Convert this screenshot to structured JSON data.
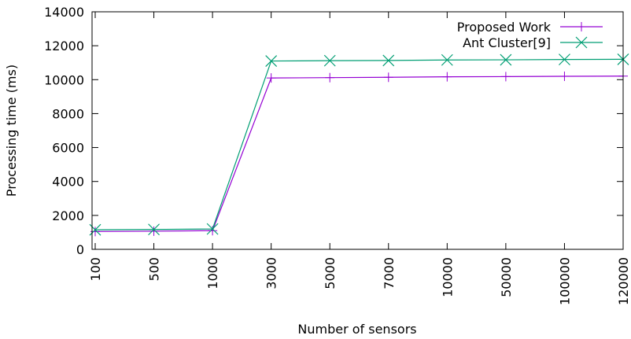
{
  "chart_data": {
    "type": "line",
    "title": "",
    "xlabel": "Number of sensors",
    "ylabel": "Processing time (ms)",
    "categories": [
      "100",
      "500",
      "1000",
      "3000",
      "5000",
      "7000",
      "10000",
      "50000",
      "100000",
      "120000"
    ],
    "ylim": [
      0,
      14000
    ],
    "yticks": [
      0,
      2000,
      4000,
      6000,
      8000,
      10000,
      12000,
      14000
    ],
    "grid": false,
    "legend_position": "top-right",
    "series": [
      {
        "name": "Proposed Work",
        "color": "#9400d3",
        "marker": "plus",
        "values": [
          1050,
          1070,
          1100,
          10100,
          10120,
          10140,
          10170,
          10180,
          10200,
          10210
        ]
      },
      {
        "name": "Ant Cluster[9]",
        "color": "#009e73",
        "marker": "x",
        "values": [
          1150,
          1170,
          1200,
          11100,
          11120,
          11130,
          11160,
          11170,
          11190,
          11200
        ]
      }
    ]
  }
}
